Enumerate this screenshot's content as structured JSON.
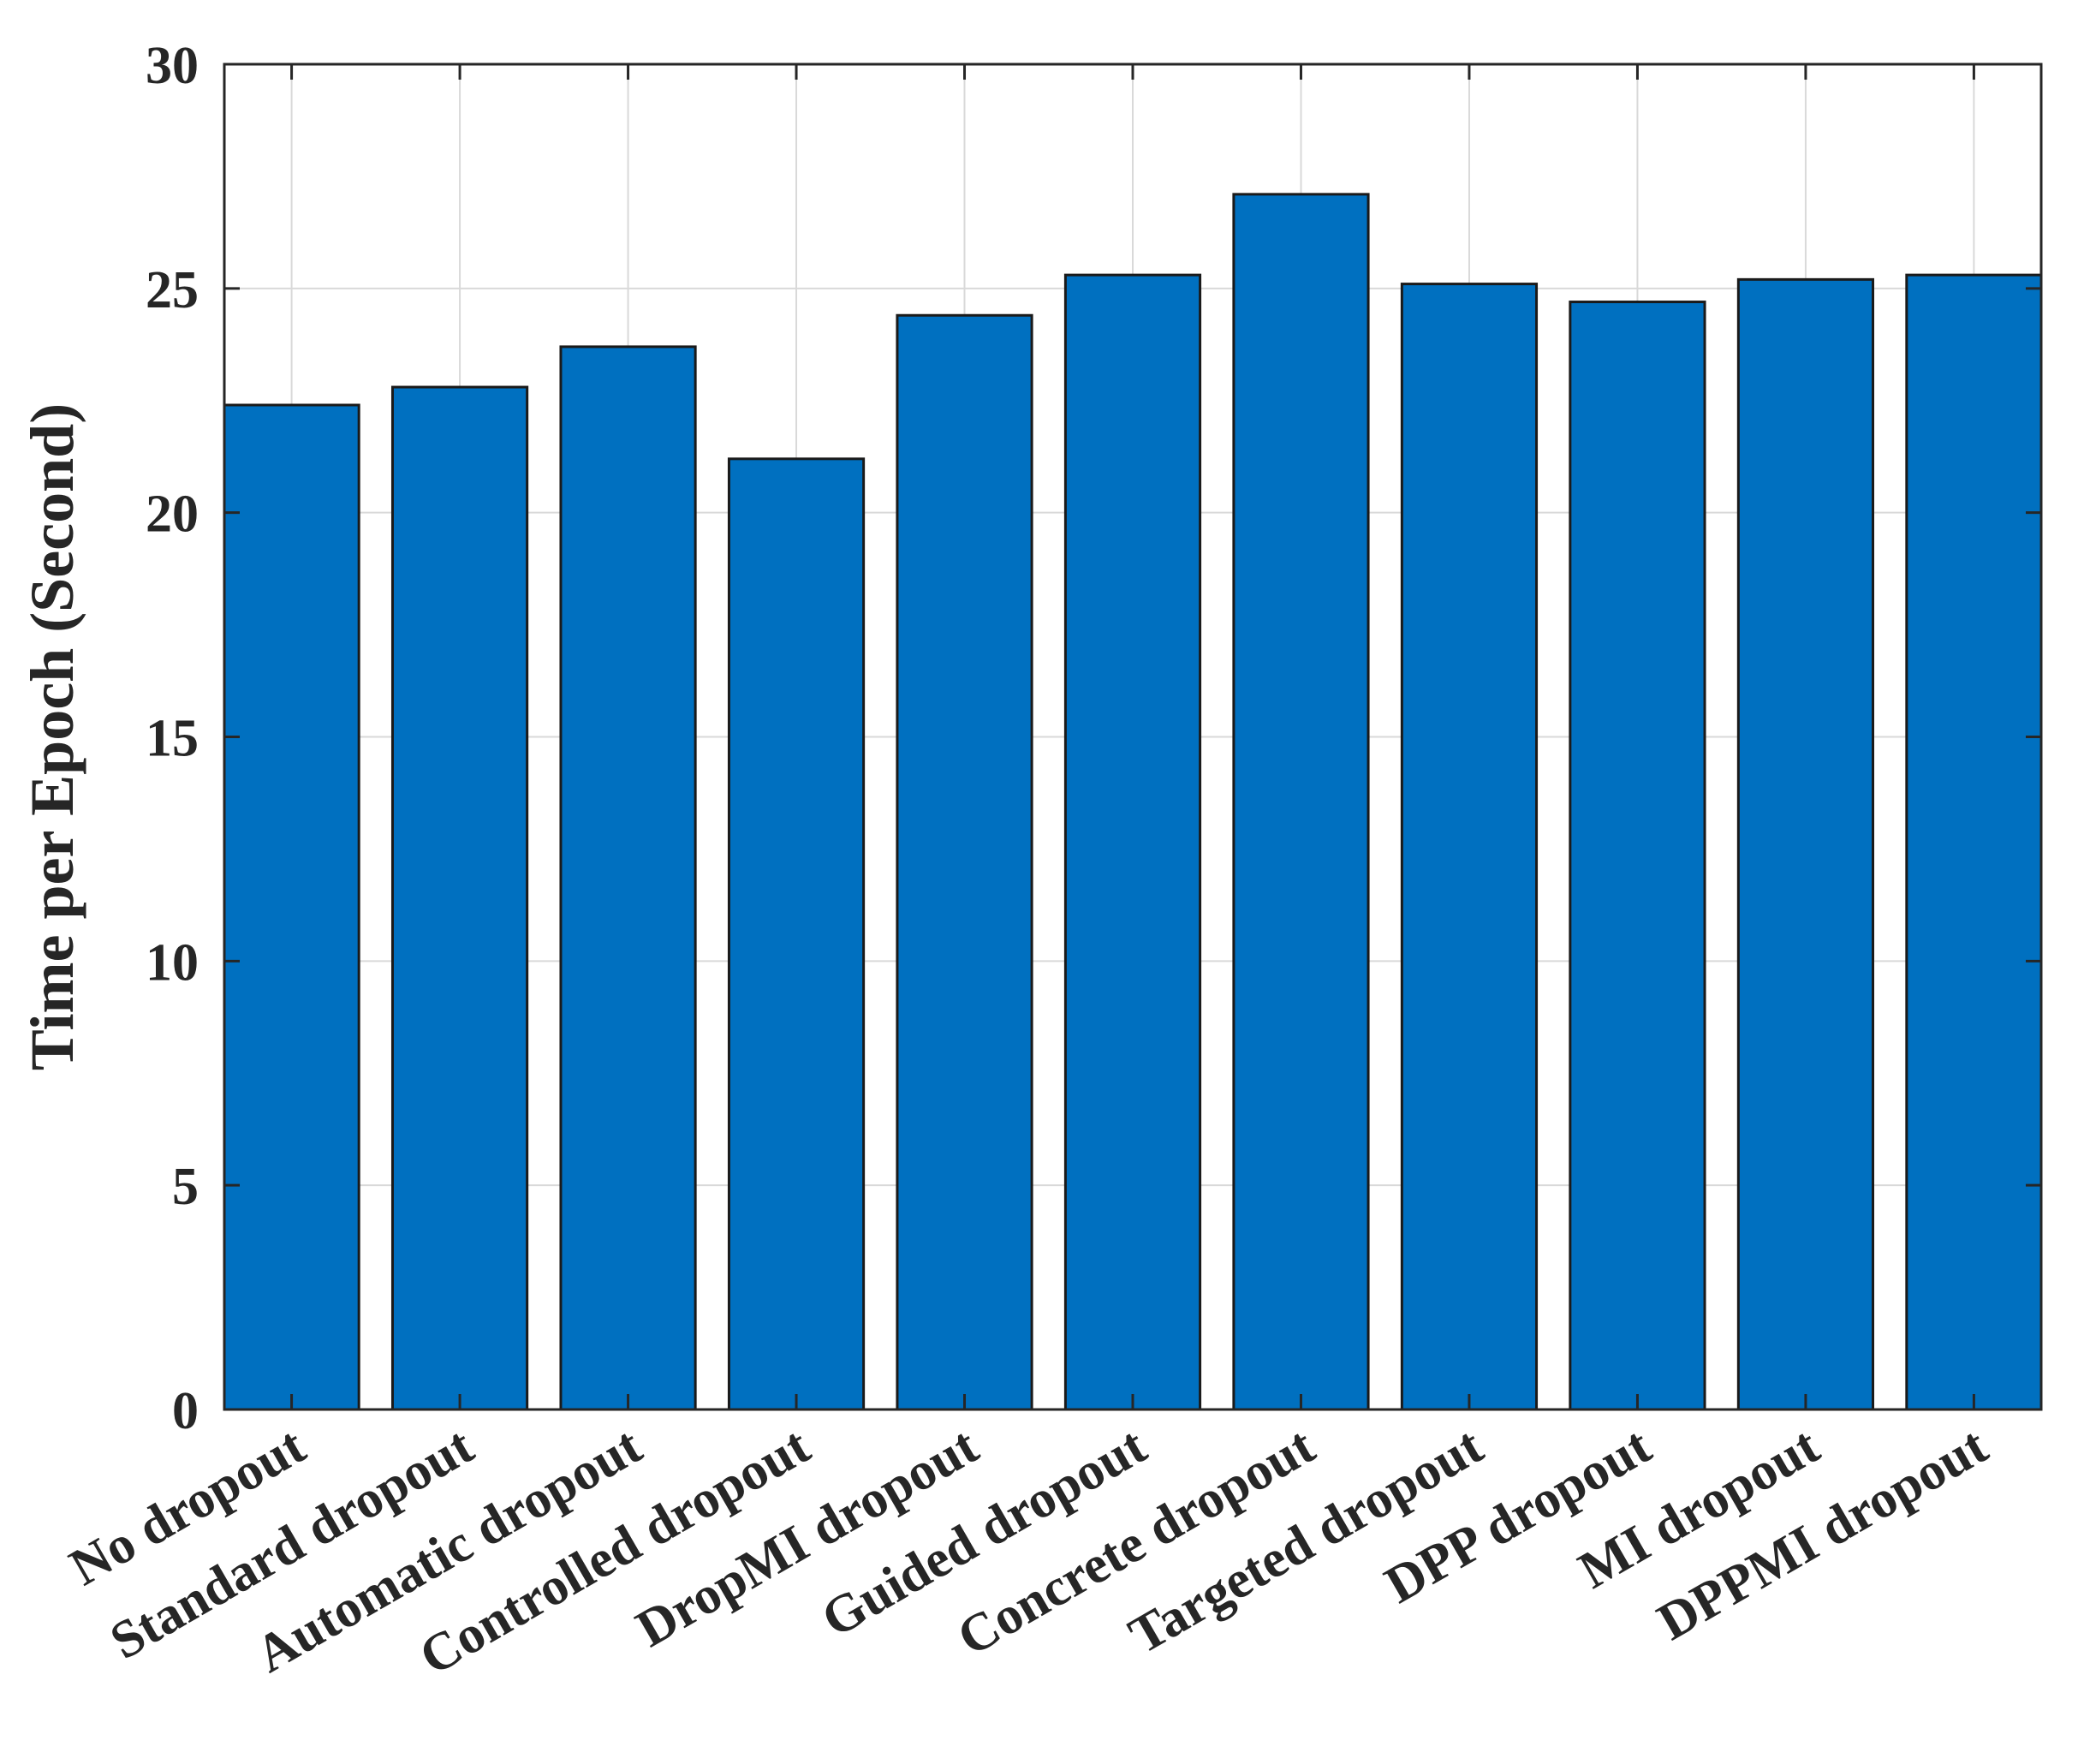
{
  "chart_data": {
    "type": "bar",
    "title": "",
    "xlabel": "",
    "ylabel": "Time per Epoch (Second)",
    "ylim": [
      0,
      30
    ],
    "yticks": [
      0,
      5,
      10,
      15,
      20,
      25,
      30
    ],
    "grid": true,
    "categories": [
      "No dropout",
      "Standard dropout",
      "Automatic dropout",
      "Controlled dropout",
      "DropMI dropout",
      "Guided dropout",
      "Concrete dropout",
      "Targeted dropout",
      "DPP dropout",
      "MI dropout",
      "DPPMI dropout"
    ],
    "values": [
      22.4,
      22.8,
      23.7,
      21.2,
      24.4,
      25.3,
      27.1,
      25.1,
      24.7,
      25.2,
      25.3
    ],
    "colors": {
      "bar": "#0070C0",
      "bar_edge": "#1a1a1a",
      "grid": "#d9d9d9",
      "axis": "#262626"
    }
  }
}
